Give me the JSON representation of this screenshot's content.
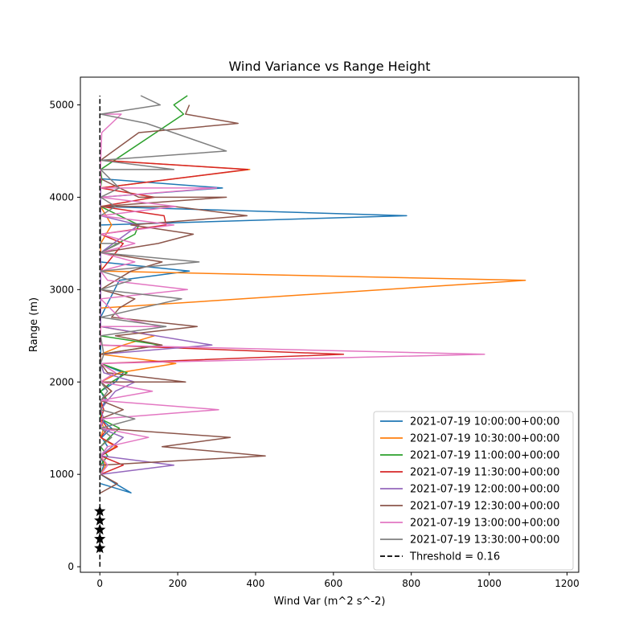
{
  "chart_data": {
    "type": "line",
    "title": "Wind Variance vs Range Height",
    "xlabel": "Wind Var (m^2 s^-2)",
    "ylabel": "Range (m)",
    "xlim": [
      -50,
      1230
    ],
    "ylim": [
      -60,
      5300
    ],
    "xticks": [
      0,
      200,
      400,
      600,
      800,
      1000,
      1200
    ],
    "yticks": [
      0,
      1000,
      2000,
      3000,
      4000,
      5000
    ],
    "legend_position": "lower-right",
    "series": [
      {
        "name": "2021-07-19 10:00:00+00:00",
        "color": "#1f77b4",
        "points": [
          [
            2,
            900
          ],
          [
            80,
            800
          ],
          [
            40,
            900
          ],
          [
            2,
            1000
          ],
          [
            10,
            1100
          ],
          [
            2,
            1200
          ],
          [
            20,
            1300
          ],
          [
            5,
            1400
          ],
          [
            30,
            1500
          ],
          [
            2,
            1600
          ],
          [
            2,
            1700
          ],
          [
            15,
            1800
          ],
          [
            2,
            1900
          ],
          [
            40,
            2000
          ],
          [
            60,
            2100
          ],
          [
            2,
            2200
          ],
          [
            2,
            2300
          ],
          [
            2,
            2500
          ],
          [
            2,
            2700
          ],
          [
            50,
            3100
          ],
          [
            230,
            3200
          ],
          [
            2,
            3300
          ],
          [
            2,
            3500
          ],
          [
            2,
            3700
          ],
          [
            788,
            3800
          ],
          [
            2,
            3900
          ],
          [
            2,
            4000
          ],
          [
            315,
            4100
          ],
          [
            2,
            4200
          ],
          [
            2,
            4400
          ]
        ]
      },
      {
        "name": "2021-07-19 10:30:00+00:00",
        "color": "#ff7f0e",
        "points": [
          [
            2,
            1000
          ],
          [
            15,
            1100
          ],
          [
            2,
            1200
          ],
          [
            40,
            1300
          ],
          [
            2,
            1400
          ],
          [
            10,
            1500
          ],
          [
            2,
            1600
          ],
          [
            5,
            1700
          ],
          [
            2,
            1800
          ],
          [
            30,
            1900
          ],
          [
            2,
            2000
          ],
          [
            50,
            2100
          ],
          [
            195,
            2200
          ],
          [
            2,
            2300
          ],
          [
            60,
            2400
          ],
          [
            140,
            2500
          ],
          [
            2,
            2600
          ],
          [
            2,
            2800
          ],
          [
            1093,
            3100
          ],
          [
            5,
            3200
          ],
          [
            2,
            3300
          ],
          [
            2,
            3500
          ],
          [
            30,
            3700
          ],
          [
            2,
            3900
          ],
          [
            2,
            4100
          ],
          [
            385,
            4300
          ],
          [
            2,
            4400
          ]
        ]
      },
      {
        "name": "2021-07-19 11:00:00+00:00",
        "color": "#2ca02c",
        "points": [
          [
            2,
            1100
          ],
          [
            20,
            1200
          ],
          [
            2,
            1300
          ],
          [
            25,
            1400
          ],
          [
            50,
            1500
          ],
          [
            2,
            1600
          ],
          [
            2,
            1700
          ],
          [
            20,
            1800
          ],
          [
            2,
            1900
          ],
          [
            30,
            2000
          ],
          [
            70,
            2100
          ],
          [
            2,
            2200
          ],
          [
            2,
            2300
          ],
          [
            155,
            2400
          ],
          [
            2,
            2500
          ],
          [
            2,
            2700
          ],
          [
            2,
            3400
          ],
          [
            90,
            3600
          ],
          [
            100,
            3700
          ],
          [
            2,
            3900
          ],
          [
            2,
            4000
          ],
          [
            2,
            4100
          ],
          [
            5,
            4200
          ],
          [
            2,
            4300
          ],
          [
            215,
            4900
          ],
          [
            190,
            5000
          ],
          [
            225,
            5100
          ]
        ]
      },
      {
        "name": "2021-07-19 11:30:00+00:00",
        "color": "#d62728",
        "points": [
          [
            2,
            1000
          ],
          [
            60,
            1100
          ],
          [
            2,
            1200
          ],
          [
            45,
            1300
          ],
          [
            2,
            1400
          ],
          [
            20,
            1500
          ],
          [
            2,
            1600
          ],
          [
            10,
            1700
          ],
          [
            2,
            1800
          ],
          [
            30,
            1900
          ],
          [
            2,
            2000
          ],
          [
            40,
            2100
          ],
          [
            2,
            2200
          ],
          [
            626,
            2300
          ],
          [
            2,
            2400
          ],
          [
            2,
            2700
          ],
          [
            2,
            3200
          ],
          [
            60,
            3500
          ],
          [
            2,
            3600
          ],
          [
            170,
            3700
          ],
          [
            165,
            3800
          ],
          [
            2,
            3900
          ],
          [
            140,
            4000
          ],
          [
            2,
            4100
          ],
          [
            380,
            4300
          ],
          [
            2,
            4400
          ]
        ]
      },
      {
        "name": "2021-07-19 12:00:00+00:00",
        "color": "#9467bd",
        "points": [
          [
            2,
            1000
          ],
          [
            190,
            1100
          ],
          [
            2,
            1200
          ],
          [
            60,
            1400
          ],
          [
            2,
            1500
          ],
          [
            10,
            1600
          ],
          [
            2,
            1700
          ],
          [
            20,
            1800
          ],
          [
            40,
            1900
          ],
          [
            90,
            2000
          ],
          [
            10,
            2100
          ],
          [
            2,
            2200
          ],
          [
            2,
            2300
          ],
          [
            288,
            2400
          ],
          [
            2,
            2600
          ],
          [
            2,
            2800
          ],
          [
            2,
            3400
          ],
          [
            100,
            3700
          ],
          [
            2,
            3800
          ],
          [
            2,
            3900
          ],
          [
            2,
            4000
          ],
          [
            2,
            4100
          ],
          [
            2,
            4400
          ]
        ]
      },
      {
        "name": "2021-07-19 12:30:00+00:00",
        "color": "#8c564b",
        "points": [
          [
            2,
            800
          ],
          [
            45,
            900
          ],
          [
            2,
            1000
          ],
          [
            2,
            1100
          ],
          [
            425,
            1200
          ],
          [
            160,
            1300
          ],
          [
            335,
            1400
          ],
          [
            2,
            1500
          ],
          [
            2,
            1600
          ],
          [
            60,
            1700
          ],
          [
            2,
            1800
          ],
          [
            30,
            1900
          ],
          [
            2,
            2000
          ],
          [
            220,
            2000
          ],
          [
            20,
            2100
          ],
          [
            2,
            2200
          ],
          [
            2,
            2300
          ],
          [
            160,
            2400
          ],
          [
            40,
            2500
          ],
          [
            250,
            2600
          ],
          [
            30,
            2700
          ],
          [
            50,
            2800
          ],
          [
            90,
            2900
          ],
          [
            2,
            3000
          ],
          [
            80,
            3200
          ],
          [
            160,
            3300
          ],
          [
            2,
            3400
          ],
          [
            150,
            3500
          ],
          [
            240,
            3600
          ],
          [
            80,
            3700
          ],
          [
            378,
            3800
          ],
          [
            190,
            3900
          ],
          [
            2,
            3900
          ],
          [
            325,
            4000
          ],
          [
            100,
            4000
          ],
          [
            2,
            4200
          ],
          [
            2,
            4400
          ],
          [
            100,
            4700
          ],
          [
            355,
            4800
          ],
          [
            220,
            4900
          ],
          [
            230,
            5000
          ]
        ]
      },
      {
        "name": "2021-07-19 13:00:00+00:00",
        "color": "#e377c2",
        "points": [
          [
            2,
            1000
          ],
          [
            20,
            1100
          ],
          [
            2,
            1200
          ],
          [
            20,
            1300
          ],
          [
            125,
            1400
          ],
          [
            2,
            1500
          ],
          [
            2,
            1600
          ],
          [
            305,
            1700
          ],
          [
            2,
            1800
          ],
          [
            135,
            1900
          ],
          [
            2,
            2000
          ],
          [
            40,
            2100
          ],
          [
            2,
            2200
          ],
          [
            988,
            2300
          ],
          [
            2,
            2400
          ],
          [
            2,
            2500
          ],
          [
            2,
            2600
          ],
          [
            155,
            2600
          ],
          [
            50,
            2700
          ],
          [
            2,
            2900
          ],
          [
            225,
            3000
          ],
          [
            20,
            3100
          ],
          [
            2,
            3200
          ],
          [
            90,
            3300
          ],
          [
            2,
            3400
          ],
          [
            90,
            3500
          ],
          [
            2,
            3600
          ],
          [
            190,
            3700
          ],
          [
            2,
            3800
          ],
          [
            195,
            3900
          ],
          [
            2,
            4000
          ],
          [
            300,
            4100
          ],
          [
            220,
            4100
          ],
          [
            2,
            4100
          ],
          [
            2,
            4400
          ],
          [
            5,
            4700
          ],
          [
            55,
            4900
          ],
          [
            2,
            4900
          ]
        ]
      },
      {
        "name": "2021-07-19 13:30:00+00:00",
        "color": "#7f7f7f",
        "points": [
          [
            2,
            1000
          ],
          [
            2,
            1100
          ],
          [
            2,
            1300
          ],
          [
            30,
            1400
          ],
          [
            2,
            1500
          ],
          [
            90,
            1600
          ],
          [
            2,
            1700
          ],
          [
            2,
            1800
          ],
          [
            20,
            1900
          ],
          [
            2,
            2000
          ],
          [
            2,
            2200
          ],
          [
            10,
            2300
          ],
          [
            2,
            2500
          ],
          [
            170,
            2600
          ],
          [
            2,
            2700
          ],
          [
            210,
            2900
          ],
          [
            2,
            3000
          ],
          [
            80,
            3100
          ],
          [
            2,
            3200
          ],
          [
            255,
            3300
          ],
          [
            2,
            3400
          ],
          [
            50,
            3500
          ],
          [
            2,
            3500
          ],
          [
            2,
            3600
          ],
          [
            2,
            3700
          ],
          [
            2,
            3800
          ],
          [
            40,
            3900
          ],
          [
            2,
            4000
          ],
          [
            50,
            4100
          ],
          [
            2,
            4300
          ],
          [
            190,
            4300
          ],
          [
            2,
            4400
          ],
          [
            325,
            4500
          ],
          [
            120,
            4800
          ],
          [
            2,
            4900
          ],
          [
            155,
            5000
          ],
          [
            105,
            5100
          ]
        ]
      }
    ],
    "threshold": {
      "name": "Threshold = 0.16",
      "value": 0.16,
      "y_range": [
        0,
        5100
      ],
      "color": "#000000"
    },
    "star_markers": {
      "x": [
        0,
        0,
        0,
        0,
        0
      ],
      "y": [
        200,
        300,
        400,
        500,
        600
      ],
      "color": "#000000"
    }
  }
}
